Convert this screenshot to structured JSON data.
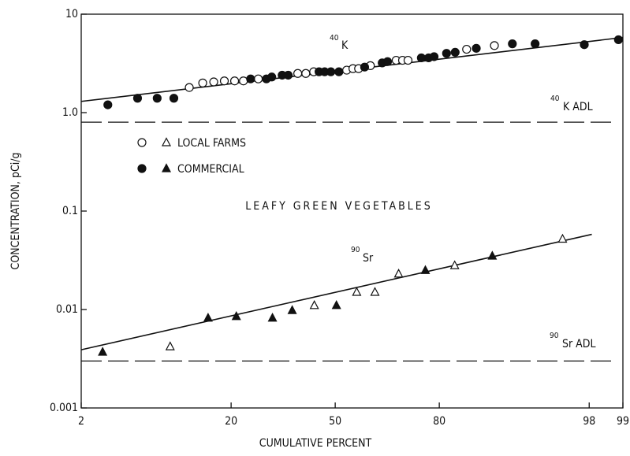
{
  "chart_data": {
    "type": "scatter",
    "x_label": "CUMULATIVE PERCENT",
    "y_label": "CONCENTRATION, pCi/g",
    "x_scale": "probability",
    "y_scale": "log",
    "xlim": [
      2,
      99
    ],
    "ylim": [
      0.001,
      10
    ],
    "xticks": [
      2,
      20,
      50,
      80,
      98,
      99
    ],
    "yticks": [
      0.001,
      0.01,
      0.1,
      {
        "value": 1,
        "label": "1.0"
      },
      10
    ],
    "series": [
      {
        "name": "LOCAL FARMS",
        "color": "#111111",
        "filled": false,
        "k_x": [
          11.9,
          14.2,
          16.3,
          18.5,
          20.8,
          22.9,
          26.7,
          38.1,
          40.6,
          43.1,
          53.7,
          55.7,
          57.5,
          61.2,
          68.9,
          70.7,
          72.2,
          85.6,
          90.1
        ],
        "k_y": [
          1.8,
          2.0,
          2.05,
          2.1,
          2.1,
          2.1,
          2.2,
          2.5,
          2.5,
          2.6,
          2.7,
          2.8,
          2.8,
          3.0,
          3.4,
          3.4,
          3.4,
          4.4,
          4.8
        ],
        "sr_x": [
          9.1,
          43.3,
          56.9,
          62.6,
          69.6,
          83.3,
          96.7
        ],
        "sr_y": [
          0.0042,
          0.011,
          0.015,
          0.015,
          0.023,
          0.028,
          0.052
        ]
      },
      {
        "name": "COMMERCIAL",
        "color": "#111111",
        "filled": true,
        "k_x": [
          3.3,
          5.5,
          7.5,
          9.6,
          24.7,
          28.9,
          30.4,
          33.4,
          35.2,
          44.8,
          46.6,
          48.6,
          51.2,
          59.4,
          64.8,
          66.4,
          75.7,
          77.5,
          78.8,
          81.6,
          83.4,
          87.3,
          92.4,
          94.7,
          97.8,
          98.9
        ],
        "k_y": [
          1.2,
          1.4,
          1.4,
          1.4,
          2.2,
          2.2,
          2.3,
          2.4,
          2.4,
          2.6,
          2.6,
          2.6,
          2.6,
          2.9,
          3.2,
          3.3,
          3.6,
          3.6,
          3.7,
          4.0,
          4.1,
          4.5,
          5.0,
          5.0,
          4.9,
          5.5
        ],
        "sr_x": [
          3.0,
          15.2,
          21.2,
          30.6,
          36.4,
          50.4,
          76.7,
          89.8
        ],
        "sr_y": [
          0.0037,
          0.0082,
          0.0085,
          0.0082,
          0.0098,
          0.011,
          0.025,
          0.035
        ]
      }
    ],
    "fits": [
      {
        "x": [
          2,
          99
        ],
        "y": [
          1.3,
          5.8
        ]
      },
      {
        "x": [
          2,
          98.1
        ],
        "y": [
          0.0039,
          0.058
        ]
      }
    ],
    "adl": [
      0.8,
      0.003
    ],
    "annotations": [
      "40",
      "K",
      "40",
      "K ADL",
      "90",
      "Sr",
      "90",
      "Sr ADL",
      "LEAFY GREEN VEGETABLES"
    ]
  }
}
